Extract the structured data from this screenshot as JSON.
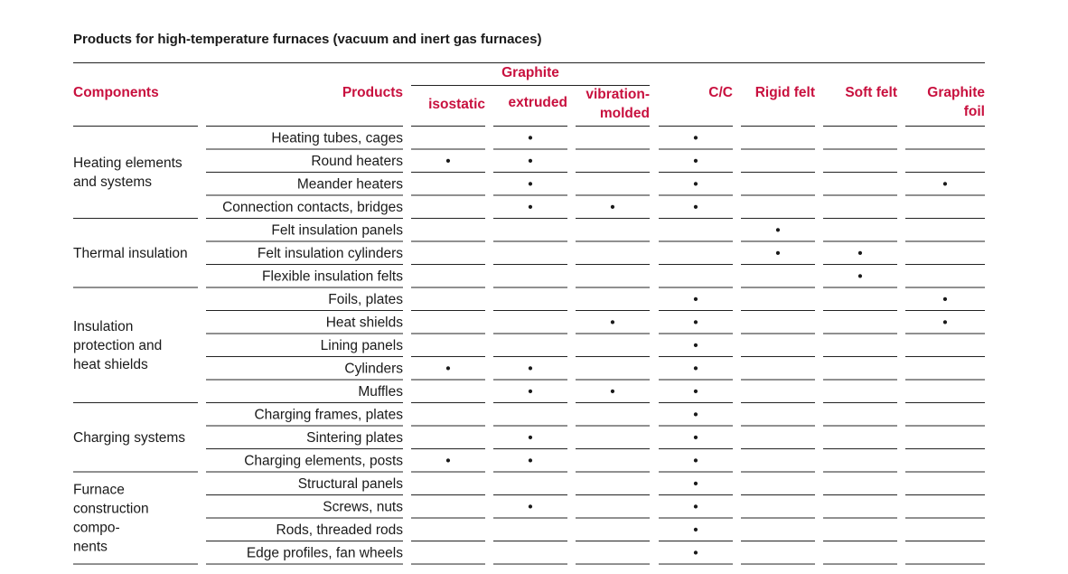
{
  "title": "Products for high-temperature furnaces (vacuum and inert gas furnaces)",
  "table": {
    "header": {
      "components": "Components",
      "products": "Products",
      "group": "Graphite",
      "columns": [
        [
          "isostatic"
        ],
        [
          "extruded"
        ],
        [
          "vibration-",
          "molded"
        ],
        [
          "C/C"
        ],
        [
          "Rigid felt"
        ],
        [
          "Soft felt"
        ],
        [
          "Graphite",
          "foil"
        ]
      ]
    },
    "groups": [
      {
        "label": [
          "Heating elements",
          "and systems"
        ],
        "rows": [
          {
            "product": "Heating tubes, cages",
            "cells": [
              null,
              "•",
              null,
              "•",
              null,
              null,
              null
            ]
          },
          {
            "product": "Round heaters",
            "cells": [
              "•",
              "•",
              null,
              "•",
              null,
              null,
              null
            ]
          },
          {
            "product": "Meander heaters",
            "cells": [
              null,
              "•",
              null,
              "•",
              null,
              null,
              "•"
            ]
          },
          {
            "product": "Connection contacts, bridges",
            "cells": [
              null,
              "•",
              "•",
              "•",
              null,
              null,
              null
            ]
          }
        ]
      },
      {
        "label": [
          "Thermal insulation"
        ],
        "rows": [
          {
            "product": "Felt insulation panels",
            "cells": [
              null,
              null,
              null,
              null,
              "•",
              null,
              null
            ]
          },
          {
            "product": "Felt insulation cylinders",
            "cells": [
              null,
              null,
              null,
              null,
              "•",
              "•",
              null
            ]
          },
          {
            "product": "Flexible insulation felts",
            "cells": [
              null,
              null,
              null,
              null,
              null,
              "•",
              null
            ]
          }
        ]
      },
      {
        "label": [
          "Insulation",
          "protection and",
          "heat shields"
        ],
        "rows": [
          {
            "product": "Foils, plates",
            "cells": [
              null,
              null,
              null,
              "•",
              null,
              null,
              "•"
            ]
          },
          {
            "product": "Heat shields",
            "cells": [
              null,
              null,
              "•",
              "•",
              null,
              null,
              "•"
            ]
          },
          {
            "product": "Lining panels",
            "cells": [
              null,
              null,
              null,
              "•",
              null,
              null,
              null
            ]
          },
          {
            "product": "Cylinders",
            "cells": [
              "•",
              "•",
              null,
              "•",
              null,
              null,
              null
            ]
          },
          {
            "product": "Muffles",
            "cells": [
              null,
              "•",
              "•",
              "•",
              null,
              null,
              null
            ]
          }
        ]
      },
      {
        "label": [
          "Charging systems"
        ],
        "rows": [
          {
            "product": "Charging frames, plates",
            "cells": [
              null,
              null,
              null,
              "•",
              null,
              null,
              null
            ]
          },
          {
            "product": "Sintering plates",
            "cells": [
              null,
              "•",
              null,
              "•",
              null,
              null,
              null
            ]
          },
          {
            "product": "Charging elements, posts",
            "cells": [
              "•",
              "•",
              null,
              "•",
              null,
              null,
              null
            ]
          }
        ]
      },
      {
        "label": [
          "Furnace",
          "construction",
          "compo-",
          "nents"
        ],
        "rows": [
          {
            "product": "Structural panels",
            "cells": [
              null,
              null,
              null,
              "•",
              null,
              null,
              null
            ]
          },
          {
            "product": "Screws, nuts",
            "cells": [
              null,
              "•",
              null,
              "•",
              null,
              null,
              null
            ]
          },
          {
            "product": "Rods, threaded rods",
            "cells": [
              null,
              null,
              null,
              "•",
              null,
              null,
              null
            ]
          },
          {
            "product": "Edge profiles, fan wheels",
            "cells": [
              null,
              null,
              null,
              "•",
              null,
              null,
              null
            ]
          }
        ]
      }
    ]
  }
}
